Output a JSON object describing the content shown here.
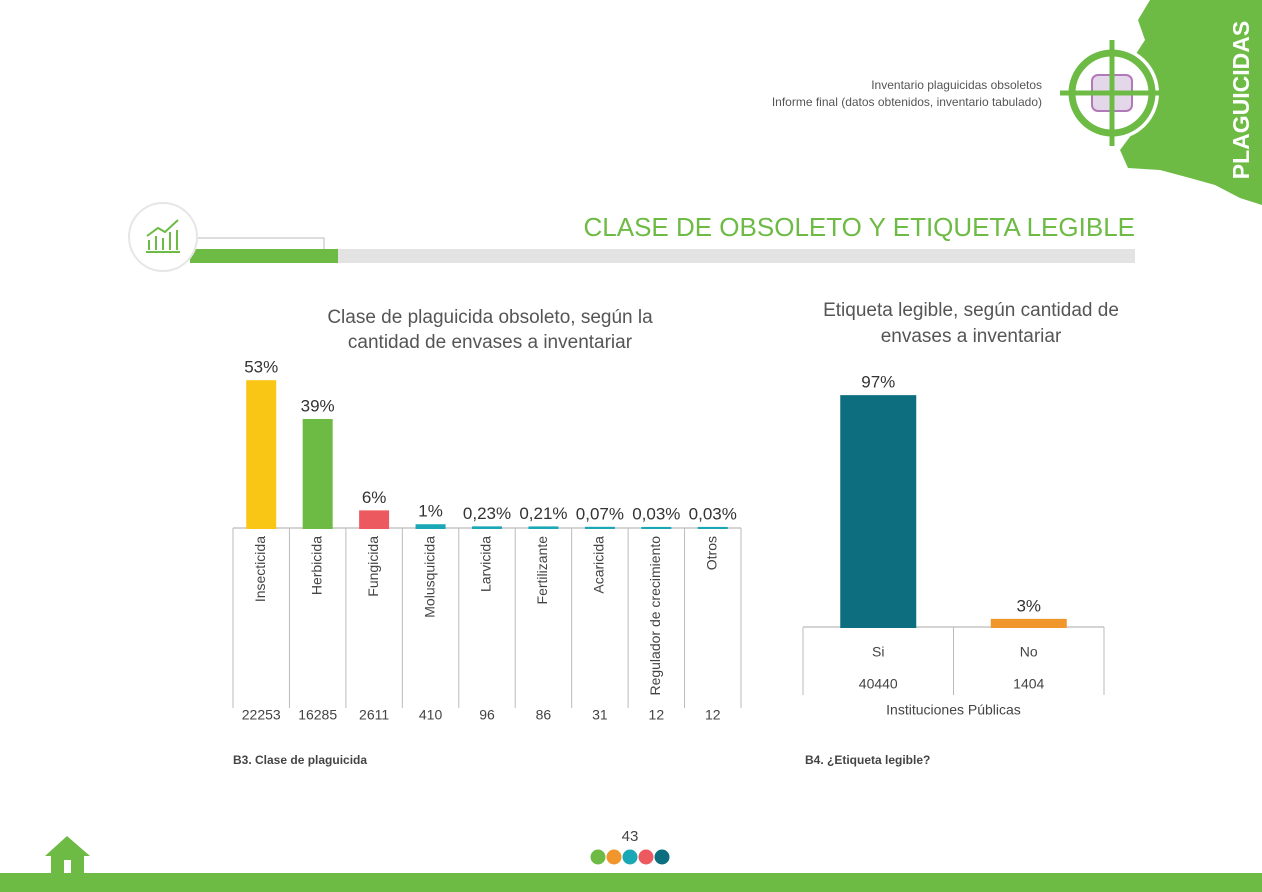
{
  "header": {
    "lines": [
      "Inventario plaguicidas obsoletos",
      "Informe final (datos obtenidos, inventario tabulado)"
    ],
    "tab": "PLAGUICIDAS"
  },
  "section_title": "CLASE  DE OBSOLETO Y ETIQUETA LEGIBLE",
  "chart_data": [
    {
      "type": "bar",
      "title": [
        "Clase de plaguicida obsoleto, según la",
        "cantidad de envases a inventariar"
      ],
      "categories": [
        "Insecticida",
        "Herbicida",
        "Fungicida",
        "Molusquicida",
        "Larvicida",
        "Fertilizante",
        "Acaricida",
        "Regulador de crecimiento",
        "Otros"
      ],
      "values": [
        53,
        39,
        6,
        1,
        0.23,
        0.21,
        0.07,
        0.03,
        0.03
      ],
      "value_labels": [
        "53%",
        "39%",
        "6%",
        "1%",
        "0,23%",
        "0,21%",
        "0,07%",
        "0,03%",
        "0,03%"
      ],
      "colors": [
        "#fac615",
        "#6dbb45",
        "#ec5a5f",
        "#1aa8b6",
        "#1aa8b6",
        "#1aa8b6",
        "#1aa8b6",
        "#1aa8b6",
        "#1aa8b6"
      ],
      "counts": [
        22253,
        16285,
        2611,
        410,
        96,
        86,
        31,
        12,
        12
      ],
      "note": "B3. Clase de plaguicida"
    },
    {
      "type": "bar",
      "title": [
        "Etiqueta legible, según cantidad de",
        "envases a inventariar"
      ],
      "categories": [
        "Si",
        "No"
      ],
      "values": [
        97,
        3
      ],
      "value_labels": [
        "97%",
        "3%"
      ],
      "colors": [
        "#0c6e7e",
        "#f0962b"
      ],
      "counts": [
        40440,
        1404
      ],
      "xlabel": "Instituciones Públicas",
      "note": "B4. ¿Etiqueta legible?"
    }
  ],
  "page_number": 43
}
